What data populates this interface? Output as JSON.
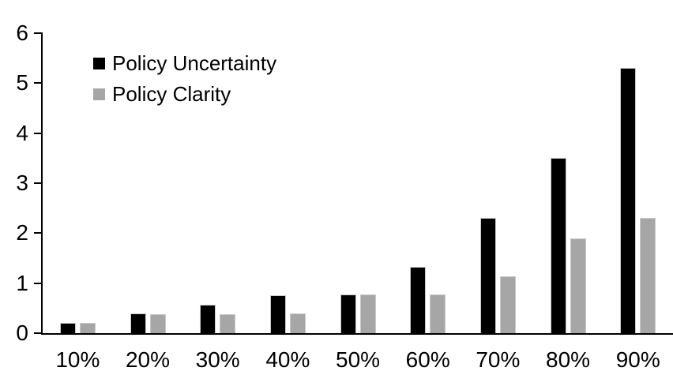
{
  "chart_data": {
    "type": "bar",
    "title": "",
    "xlabel": "",
    "ylabel": "",
    "categories": [
      "10%",
      "20%",
      "30%",
      "40%",
      "50%",
      "60%",
      "70%",
      "80%",
      "90%"
    ],
    "series": [
      {
        "name": "Policy Uncertainty",
        "color": "#000000",
        "values": [
          0.2,
          0.4,
          0.57,
          0.76,
          0.78,
          1.33,
          2.3,
          3.5,
          5.3
        ]
      },
      {
        "name": "Policy Clarity",
        "color": "#A6A6A6",
        "values": [
          0.2,
          0.38,
          0.38,
          0.39,
          0.77,
          0.77,
          1.13,
          1.9,
          2.3
        ]
      }
    ],
    "ylim": [
      0,
      6
    ],
    "y_ticks": [
      0,
      1,
      2,
      3,
      4,
      5,
      6
    ],
    "grid": false,
    "legend_position": "top-left-inside",
    "background": "#ffffff",
    "axis_color": "#000000"
  }
}
